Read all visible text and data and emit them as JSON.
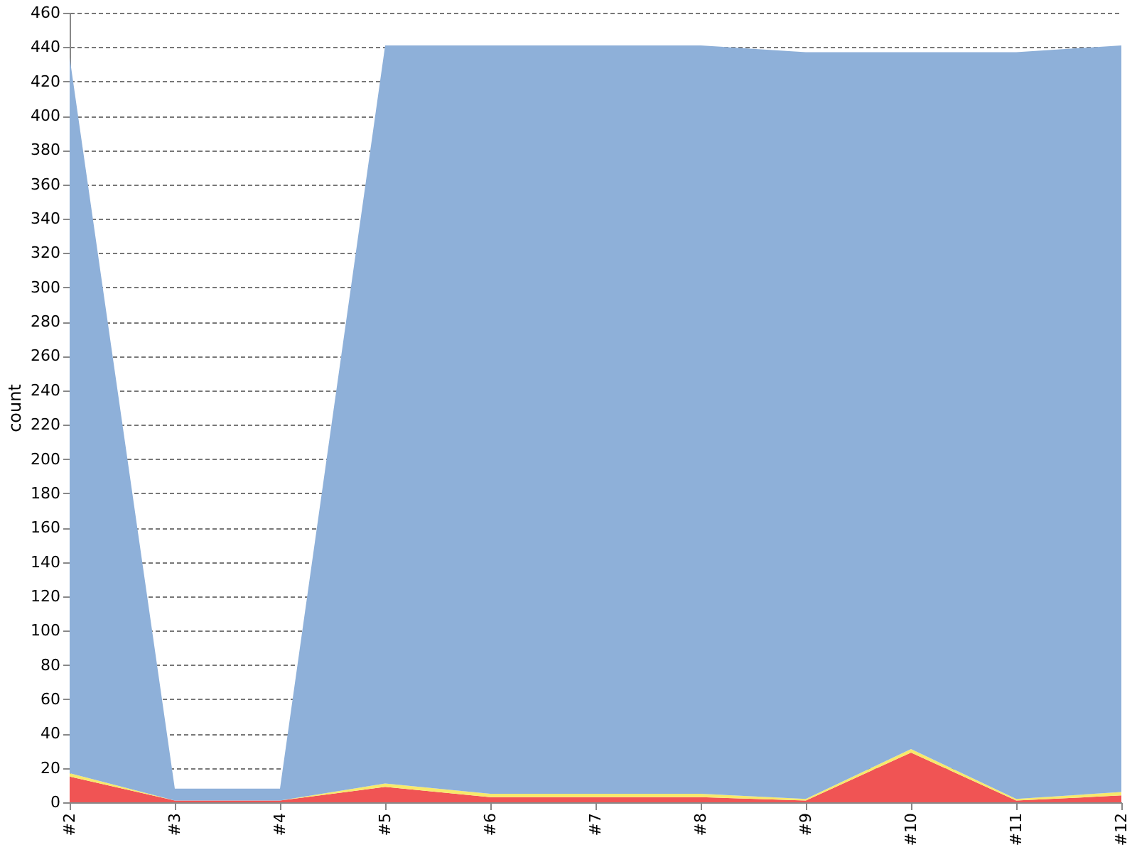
{
  "chart_data": {
    "type": "area",
    "stacked": true,
    "ylabel": "count",
    "categories": [
      "#2",
      "#3",
      "#4",
      "#5",
      "#6",
      "#7",
      "#8",
      "#9",
      "#10",
      "#11",
      "#12"
    ],
    "series": [
      {
        "color": "#f05454",
        "values": [
          15,
          1,
          1,
          9,
          3,
          3,
          3,
          1,
          29,
          1,
          4
        ]
      },
      {
        "color": "#f7e96b",
        "values": [
          2,
          0,
          0,
          2,
          2,
          2,
          2,
          1,
          2,
          1,
          2
        ]
      },
      {
        "color": "#8eb0d9",
        "values": [
          417,
          7,
          7,
          430,
          436,
          436,
          436,
          435,
          406,
          435,
          435
        ]
      }
    ],
    "ylim": [
      0,
      460
    ],
    "yticks": [
      0,
      20,
      40,
      60,
      80,
      100,
      120,
      140,
      160,
      180,
      200,
      220,
      240,
      260,
      280,
      300,
      320,
      340,
      360,
      380,
      400,
      420,
      440,
      460
    ],
    "grid": "y",
    "legend": false
  }
}
